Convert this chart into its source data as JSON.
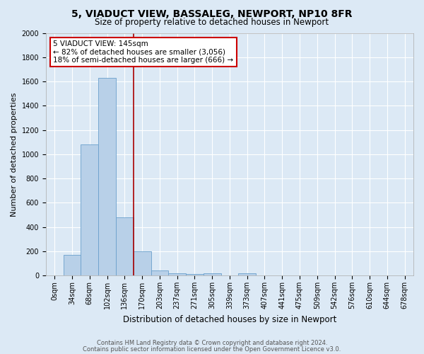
{
  "title": "5, VIADUCT VIEW, BASSALEG, NEWPORT, NP10 8FR",
  "subtitle": "Size of property relative to detached houses in Newport",
  "xlabel": "Distribution of detached houses by size in Newport",
  "ylabel": "Number of detached properties",
  "bar_labels": [
    "0sqm",
    "34sqm",
    "68sqm",
    "102sqm",
    "136sqm",
    "170sqm",
    "203sqm",
    "237sqm",
    "271sqm",
    "305sqm",
    "339sqm",
    "373sqm",
    "407sqm",
    "441sqm",
    "475sqm",
    "509sqm",
    "542sqm",
    "576sqm",
    "610sqm",
    "644sqm",
    "678sqm"
  ],
  "bar_values": [
    0,
    170,
    1080,
    1630,
    480,
    200,
    40,
    20,
    10,
    20,
    0,
    20,
    0,
    0,
    0,
    0,
    0,
    0,
    0,
    0,
    0
  ],
  "bar_color": "#b8d0e8",
  "bar_edge_color": "#6aa0cc",
  "vline_x": 4.0,
  "vline_color": "#aa0000",
  "annotation_text": "5 VIADUCT VIEW: 145sqm\n← 82% of detached houses are smaller (3,056)\n18% of semi-detached houses are larger (666) →",
  "annotation_box_color": "white",
  "annotation_box_edge": "#cc0000",
  "ylim": [
    0,
    2000
  ],
  "yticks": [
    0,
    200,
    400,
    600,
    800,
    1000,
    1200,
    1400,
    1600,
    1800,
    2000
  ],
  "footnote1": "Contains HM Land Registry data © Crown copyright and database right 2024.",
  "footnote2": "Contains public sector information licensed under the Open Government Licence v3.0.",
  "background_color": "#dce9f5",
  "plot_bg_color": "#dce9f5",
  "title_fontsize": 10,
  "subtitle_fontsize": 8.5,
  "ylabel_fontsize": 8,
  "xlabel_fontsize": 8.5,
  "tick_fontsize": 7,
  "footnote_fontsize": 6,
  "annotation_fontsize": 7.5
}
